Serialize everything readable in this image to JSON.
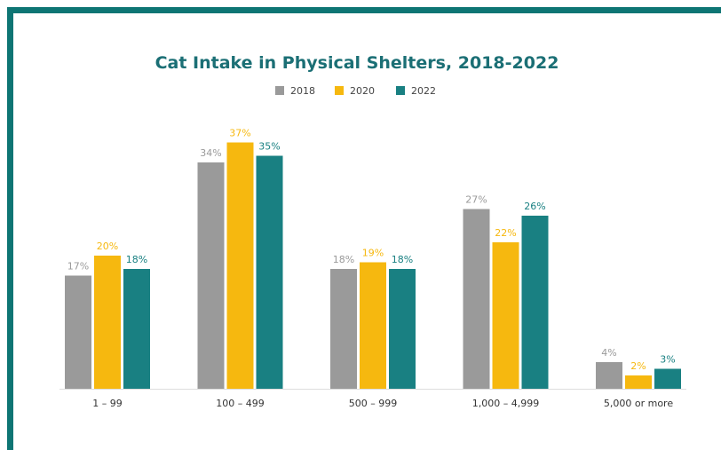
{
  "chart_data": {
    "type": "bar",
    "title": "Cat Intake in Physical Shelters, 2018-2022",
    "categories": [
      "1 – 99",
      "100 – 499",
      "500 – 999",
      "1,000 – 4,999",
      "5,000 or more"
    ],
    "series": [
      {
        "name": "2018",
        "color": "#9a9a9a",
        "values": [
          17,
          34,
          18,
          27,
          4
        ],
        "labels": [
          "17%",
          "34%",
          "18%",
          "27%",
          "4%"
        ]
      },
      {
        "name": "2020",
        "color": "#f6b80f",
        "values": [
          20,
          37,
          19,
          22,
          2
        ],
        "labels": [
          "20%",
          "37%",
          "19%",
          "22%",
          "2%"
        ]
      },
      {
        "name": "2022",
        "color": "#198082",
        "values": [
          18,
          35,
          18,
          26,
          3
        ],
        "labels": [
          "18%",
          "35%",
          "18%",
          "26%",
          "3%"
        ]
      }
    ],
    "ylim": [
      0,
      37
    ],
    "legend_position": "top-center",
    "grid": false
  }
}
